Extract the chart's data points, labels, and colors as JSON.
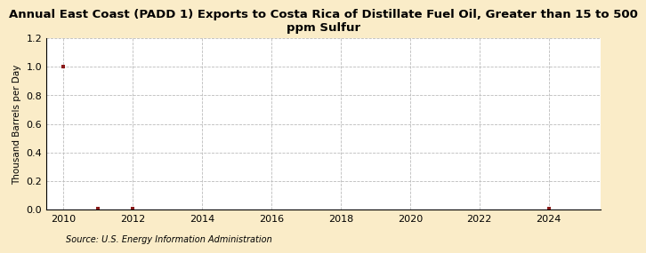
{
  "title": "Annual East Coast (PADD 1) Exports to Costa Rica of Distillate Fuel Oil, Greater than 15 to 500\nppm Sulfur",
  "ylabel": "Thousand Barrels per Day",
  "source": "Source: U.S. Energy Information Administration",
  "background_color": "#faecc8",
  "plot_bg_color": "#ffffff",
  "xlim": [
    2009.5,
    2025.5
  ],
  "ylim": [
    0,
    1.2
  ],
  "yticks": [
    0.0,
    0.2,
    0.4,
    0.6,
    0.8,
    1.0,
    1.2
  ],
  "xticks": [
    2010,
    2012,
    2014,
    2016,
    2018,
    2020,
    2022,
    2024
  ],
  "x_data": [
    2010,
    2011,
    2012,
    2024
  ],
  "y_data": [
    1.0,
    0.004,
    0.004,
    0.004
  ],
  "marker": "s",
  "marker_color": "#8b1a1a",
  "marker_size": 3.5,
  "grid_color": "#bbbbbb",
  "grid_style": "--",
  "title_fontsize": 9.5,
  "ylabel_fontsize": 7.5,
  "tick_fontsize": 8,
  "source_fontsize": 7
}
